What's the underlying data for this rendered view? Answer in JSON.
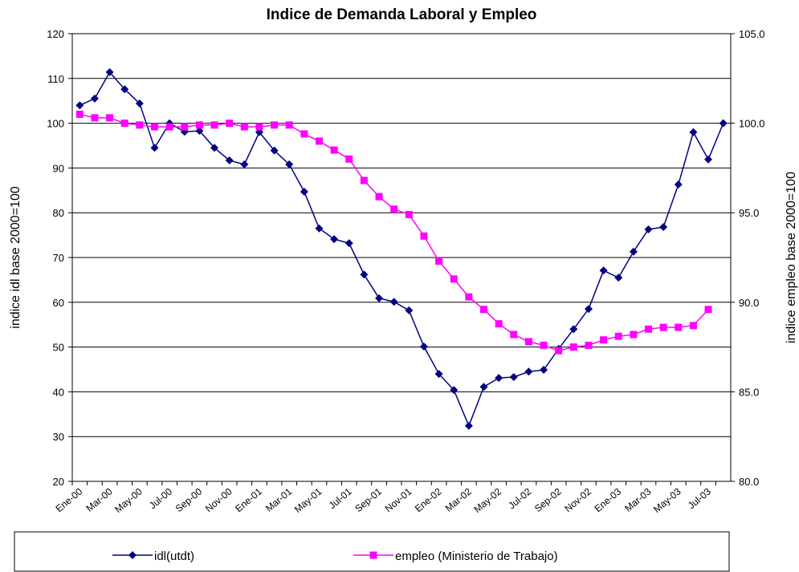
{
  "chart_data": {
    "type": "line",
    "title": "Indice de Demanda Laboral y Empleo",
    "y_label": "indice idl base 2000=100",
    "y2_label": "indice empleo base 2000=100",
    "categories": [
      "Ene-00",
      null,
      "Mar-00",
      null,
      "May-00",
      null,
      "Jul-00",
      null,
      "Sep-00",
      null,
      "Nov-00",
      null,
      "Ene-01",
      null,
      "Mar-01",
      null,
      "May-01",
      null,
      "Jul-01",
      null,
      "Sep-01",
      null,
      "Nov-01",
      null,
      "Ene-02",
      null,
      "Mar-02",
      null,
      "May-02",
      null,
      "Jul-02",
      null,
      "Sep-02",
      null,
      "Nov-02",
      null,
      "Ene-03",
      null,
      "Mar-03",
      null,
      "May-03",
      null,
      "Jul-03",
      null
    ],
    "series": [
      {
        "name": "idl(utdt)",
        "color": "#000080",
        "marker": "diamond",
        "values": [
          104,
          105.5,
          111.4,
          107.6,
          104.4,
          94.5,
          100,
          98.1,
          98.3,
          94.5,
          91.7,
          90.8,
          98,
          93.9,
          90.8,
          84.7,
          76.5,
          74.1,
          73.2,
          66.2,
          60.9,
          60.1,
          58.2,
          50.1,
          44,
          40.4,
          32.4,
          41.1,
          43.1,
          43.3,
          44.5,
          44.9,
          49.6,
          54,
          58.5,
          67.1,
          65.5,
          71.3,
          76.3,
          76.8,
          86.3,
          98,
          91.9,
          100
        ]
      },
      {
        "name": "empleo (Ministerio de Trabajo)",
        "color": "#ff00ff",
        "marker": "square",
        "axis": "y2",
        "values": [
          100.5,
          100.3,
          100.3,
          100.0,
          99.9,
          99.8,
          99.8,
          99.8,
          99.9,
          99.9,
          100.0,
          99.8,
          99.8,
          99.9,
          99.9,
          99.4,
          99.0,
          98.5,
          98.0,
          96.8,
          95.9,
          95.2,
          94.9,
          93.7,
          92.3,
          91.3,
          90.3,
          89.6,
          88.8,
          88.2,
          87.8,
          87.6,
          87.3,
          87.5,
          87.6,
          87.9,
          88.1,
          88.2,
          88.5,
          88.6,
          88.6,
          88.7,
          89.6,
          null
        ]
      }
    ],
    "ylim": [
      20,
      120
    ],
    "yticks": [
      20,
      30,
      40,
      50,
      60,
      70,
      80,
      90,
      100,
      110,
      120
    ],
    "y2lim": [
      80,
      105
    ],
    "y2ticks": [
      {
        "value": 80,
        "label": "80.0"
      },
      {
        "value": 85,
        "label": "85.0"
      },
      {
        "value": 90,
        "label": "90.0"
      },
      {
        "value": 95,
        "label": "95.0"
      },
      {
        "value": 100,
        "label": "100.0"
      },
      {
        "value": 105,
        "label": "105.0"
      }
    ],
    "grid": true,
    "legend": "bottom"
  }
}
